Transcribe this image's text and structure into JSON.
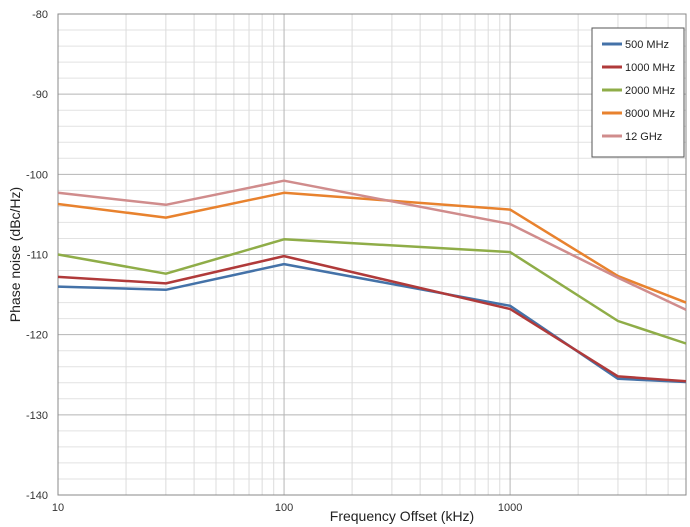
{
  "chart_data": {
    "type": "line",
    "title": "",
    "xlabel": "Frequency Offset (kHz)",
    "ylabel": "Phase noise (dBc/Hz)",
    "xscale": "log",
    "xlim": [
      10,
      6000
    ],
    "ylim": [
      -140,
      -80
    ],
    "x_ticks": [
      10,
      100,
      1000
    ],
    "y_ticks": [
      -80,
      -90,
      -100,
      -110,
      -120,
      -130,
      -140
    ],
    "grid": true,
    "legend_position": "top-right",
    "x": [
      10,
      30,
      100,
      1000,
      3000,
      6000
    ],
    "series": [
      {
        "name": "500 MHz",
        "color": "#4472A8",
        "values": [
          -114.0,
          -114.4,
          -111.2,
          -116.4,
          -125.5,
          -125.9
        ]
      },
      {
        "name": "1000 MHz",
        "color": "#B03A3A",
        "values": [
          -112.8,
          -113.6,
          -110.2,
          -116.8,
          -125.2,
          -125.8
        ]
      },
      {
        "name": "2000 MHz",
        "color": "#8FAD48",
        "values": [
          -110.0,
          -112.4,
          -108.1,
          -109.7,
          -118.3,
          -121.1
        ]
      },
      {
        "name": "8000 MHz",
        "color": "#E8822E",
        "values": [
          -103.7,
          -105.4,
          -102.3,
          -104.4,
          -112.7,
          -116.0
        ]
      },
      {
        "name": "12 GHz",
        "color": "#D08C8C",
        "values": [
          -102.3,
          -103.8,
          -100.8,
          -106.2,
          -112.9,
          -116.9
        ]
      }
    ]
  }
}
